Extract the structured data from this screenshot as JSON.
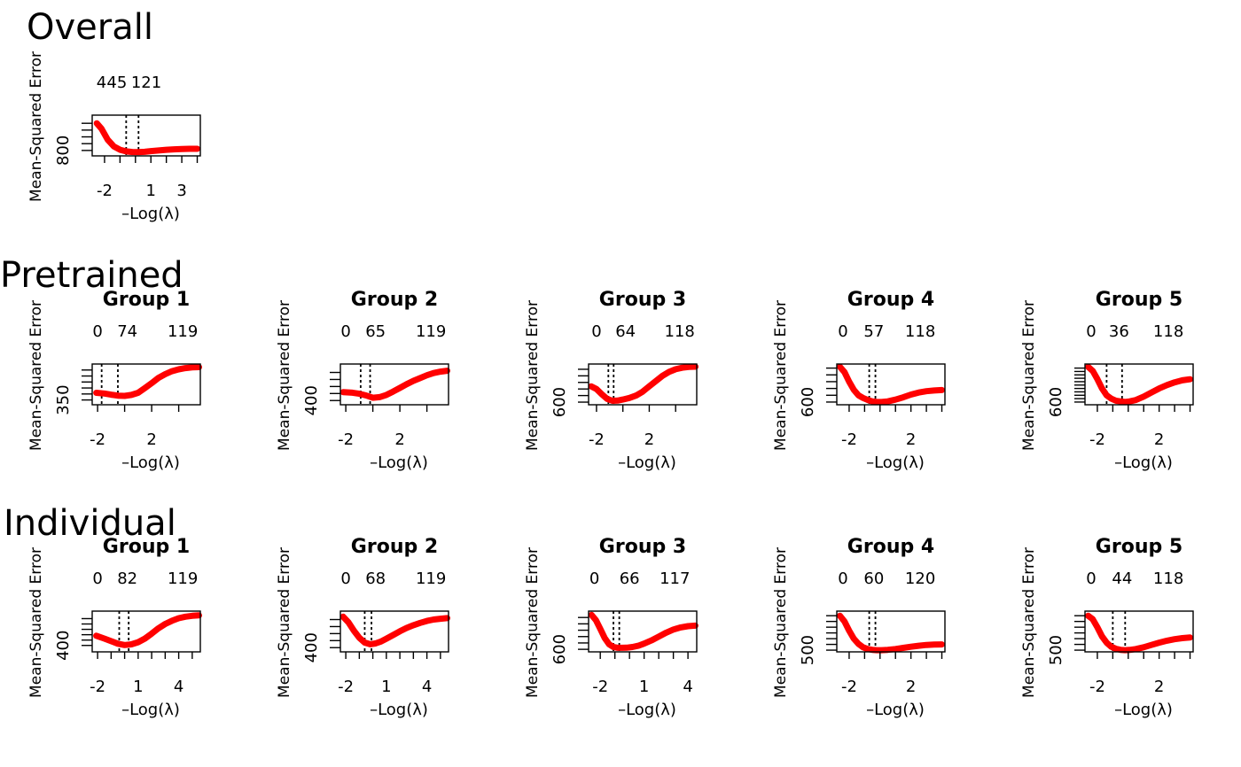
{
  "sections": [
    {
      "title": "Overall"
    },
    {
      "title": "Pretrained"
    },
    {
      "title": "Individual"
    }
  ],
  "colors": {
    "curve": "#ff0000",
    "band": "#a6a6a6",
    "axis": "#000000"
  },
  "chart_data": [
    {
      "section": "Overall",
      "type": "line",
      "title": "",
      "xlabel": "–Log(λ)",
      "ylabel": "Mean-Squared Error",
      "xlim": [
        -2.8,
        4.2
      ],
      "ylim": [
        760,
        1060
      ],
      "xticks": [
        -2,
        -1,
        0,
        1,
        2,
        3,
        4
      ],
      "xtick_labels": [
        "-2",
        "1",
        "3"
      ],
      "xtick_label_values": [
        -2,
        1,
        3
      ],
      "yticks": [
        800,
        850,
        900,
        950,
        1000
      ],
      "ytick_labels": [
        "800"
      ],
      "ytick_label_values": [
        800
      ],
      "top_ticks": [
        -2.2,
        -1.2,
        0.7
      ],
      "top_labels": [
        "4",
        "45",
        "121"
      ],
      "vlines": [
        -0.6,
        0.2
      ],
      "series": [
        {
          "x": [
            -2.5,
            -2.2,
            -1.8,
            -1.4,
            -1.0,
            -0.6,
            -0.2,
            0.2,
            0.6,
            1.0,
            1.5,
            2.0,
            2.5,
            3.0,
            3.5,
            4.0
          ],
          "y": [
            1000,
            960,
            880,
            830,
            805,
            793,
            789,
            788,
            790,
            795,
            800,
            805,
            808,
            810,
            812,
            812
          ]
        }
      ]
    },
    {
      "section": "Pretrained",
      "type": "line",
      "title": "Group 1",
      "xlabel": "–Log(λ)",
      "ylabel": "Mean-Squared Error",
      "xlim": [
        -2.4,
        5.6
      ],
      "ylim": [
        330,
        500
      ],
      "xticks": [
        -2,
        0,
        2,
        4
      ],
      "xtick_labels": [
        "-2",
        "2"
      ],
      "xtick_label_values": [
        -2,
        2
      ],
      "yticks": [
        350,
        375,
        400,
        425,
        450,
        475
      ],
      "ytick_labels": [
        "350"
      ],
      "ytick_label_values": [
        350
      ],
      "top_ticks": [
        -2.0,
        0.2,
        4.3
      ],
      "top_labels": [
        "0",
        "74",
        "119"
      ],
      "vlines": [
        -1.7,
        -0.5
      ],
      "series": [
        {
          "x": [
            -2.1,
            -1.5,
            -1.0,
            -0.5,
            0.0,
            0.5,
            1.0,
            1.5,
            2.0,
            2.5,
            3.0,
            3.5,
            4.0,
            4.5,
            5.0,
            5.5
          ],
          "y": [
            380,
            377,
            372,
            368,
            367,
            371,
            380,
            400,
            420,
            442,
            458,
            470,
            478,
            483,
            486,
            487
          ]
        }
      ]
    },
    {
      "section": "Pretrained",
      "type": "line",
      "title": "Group 2",
      "xlabel": "–Log(λ)",
      "ylabel": "Mean-Squared Error",
      "xlim": [
        -2.4,
        5.6
      ],
      "ylim": [
        385,
        530
      ],
      "xticks": [
        -2,
        0,
        2,
        4
      ],
      "xtick_labels": [
        "-2",
        "2"
      ],
      "xtick_label_values": [
        -2,
        2
      ],
      "yticks": [
        400,
        425,
        450,
        475,
        500
      ],
      "ytick_labels": [
        "400"
      ],
      "ytick_label_values": [
        400
      ],
      "top_ticks": [
        -2.0,
        0.2,
        4.3
      ],
      "top_labels": [
        "0",
        "65",
        "119"
      ],
      "vlines": [
        -0.9,
        -0.2
      ],
      "series": [
        {
          "x": [
            -2.2,
            -1.5,
            -1.0,
            -0.5,
            0.0,
            0.5,
            1.0,
            1.5,
            2.0,
            2.5,
            3.0,
            3.5,
            4.0,
            4.5,
            5.0,
            5.5
          ],
          "y": [
            430,
            428,
            424,
            418,
            410,
            412,
            420,
            432,
            445,
            458,
            470,
            480,
            490,
            498,
            503,
            506
          ]
        }
      ]
    },
    {
      "section": "Pretrained",
      "type": "line",
      "title": "Group 3",
      "xlabel": "–Log(λ)",
      "ylabel": "Mean-Squared Error",
      "xlim": [
        -2.6,
        5.6
      ],
      "ylim": [
        580,
        890
      ],
      "xticks": [
        -2,
        0,
        2,
        4
      ],
      "xtick_labels": [
        "-2",
        "2"
      ],
      "xtick_label_values": [
        -2,
        2
      ],
      "yticks": [
        600,
        650,
        700,
        750,
        800,
        850
      ],
      "ytick_labels": [
        "600"
      ],
      "ytick_label_values": [
        600
      ],
      "top_ticks": [
        -2.0,
        0.2,
        4.3
      ],
      "top_labels": [
        "0",
        "64",
        "118"
      ],
      "vlines": [
        -1.1,
        -0.7
      ],
      "series": [
        {
          "x": [
            -2.4,
            -2.0,
            -1.6,
            -1.2,
            -0.8,
            -0.4,
            0.0,
            0.5,
            1.0,
            1.5,
            2.0,
            2.5,
            3.0,
            3.5,
            4.0,
            4.5,
            5.0,
            5.5
          ],
          "y": [
            720,
            700,
            660,
            625,
            610,
            612,
            620,
            632,
            650,
            680,
            720,
            760,
            800,
            830,
            850,
            862,
            868,
            870
          ]
        }
      ]
    },
    {
      "section": "Pretrained",
      "type": "line",
      "title": "Group 4",
      "xlabel": "–Log(λ)",
      "ylabel": "Mean-Squared Error",
      "xlim": [
        -2.8,
        4.2
      ],
      "ylim": [
        580,
        880
      ],
      "xticks": [
        -2,
        -1,
        0,
        1,
        2,
        3,
        4
      ],
      "xtick_labels": [
        "-2",
        "2"
      ],
      "xtick_label_values": [
        -2,
        2
      ],
      "yticks": [
        600,
        650,
        700,
        750,
        800,
        850
      ],
      "ytick_labels": [
        "600"
      ],
      "ytick_label_values": [
        600
      ],
      "top_ticks": [
        -2.4,
        -0.4,
        2.6
      ],
      "top_labels": [
        "0",
        "57",
        "118"
      ],
      "vlines": [
        -0.7,
        -0.3
      ],
      "series": [
        {
          "x": [
            -2.6,
            -2.3,
            -2.0,
            -1.7,
            -1.4,
            -1.1,
            -0.8,
            -0.5,
            -0.2,
            0.1,
            0.5,
            1.0,
            1.5,
            2.0,
            2.5,
            3.0,
            3.5,
            4.0
          ],
          "y": [
            860,
            820,
            750,
            690,
            650,
            630,
            615,
            605,
            600,
            600,
            605,
            618,
            635,
            655,
            670,
            680,
            685,
            688
          ]
        }
      ]
    },
    {
      "section": "Pretrained",
      "type": "line",
      "title": "Group 5",
      "xlabel": "–Log(λ)",
      "ylabel": "Mean-Squared Error",
      "xlim": [
        -2.8,
        4.2
      ],
      "ylim": [
        580,
        880
      ],
      "xticks": [
        -2,
        -1,
        0,
        1,
        2,
        3,
        4
      ],
      "xtick_labels": [
        "-2",
        "2"
      ],
      "xtick_label_values": [
        -2,
        2
      ],
      "yticks": [
        600,
        625,
        650,
        675,
        700,
        725,
        750,
        775,
        800,
        825,
        850
      ],
      "ytick_labels": [
        "600"
      ],
      "ytick_label_values": [
        600
      ],
      "top_ticks": [
        -2.4,
        -0.6,
        2.6
      ],
      "top_labels": [
        "0",
        "36",
        "118"
      ],
      "vlines": [
        -1.4,
        -0.4
      ],
      "series": [
        {
          "x": [
            -2.6,
            -2.3,
            -2.0,
            -1.7,
            -1.4,
            -1.1,
            -0.8,
            -0.5,
            -0.2,
            0.1,
            0.5,
            1.0,
            1.5,
            2.0,
            2.5,
            3.0,
            3.5,
            4.0
          ],
          "y": [
            860,
            830,
            770,
            700,
            650,
            625,
            610,
            605,
            600,
            605,
            615,
            640,
            670,
            700,
            725,
            745,
            760,
            768
          ]
        }
      ]
    },
    {
      "section": "Individual",
      "type": "line",
      "title": "Group 1",
      "xlabel": "–Log(λ)",
      "ylabel": "Mean-Squared Error",
      "xlim": [
        -2.4,
        5.6
      ],
      "ylim": [
        370,
        560
      ],
      "xticks": [
        -2,
        -1,
        0,
        1,
        2,
        3,
        4,
        5
      ],
      "xtick_labels": [
        "-2",
        "1",
        "4"
      ],
      "xtick_label_values": [
        -2,
        1,
        4
      ],
      "yticks": [
        400,
        425,
        450,
        475,
        500,
        525
      ],
      "ytick_labels": [
        "400"
      ],
      "ytick_label_values": [
        400
      ],
      "top_ticks": [
        -2.0,
        0.2,
        4.3
      ],
      "top_labels": [
        "0",
        "82",
        "119"
      ],
      "vlines": [
        -0.4,
        0.3
      ],
      "series": [
        {
          "x": [
            -2.1,
            -1.5,
            -1.0,
            -0.5,
            0.0,
            0.5,
            1.0,
            1.5,
            2.0,
            2.5,
            3.0,
            3.5,
            4.0,
            4.5,
            5.0,
            5.5
          ],
          "y": [
            445,
            432,
            420,
            408,
            402,
            405,
            415,
            432,
            455,
            480,
            500,
            515,
            527,
            534,
            538,
            540
          ]
        }
      ]
    },
    {
      "section": "Individual",
      "type": "line",
      "title": "Group 2",
      "xlabel": "–Log(λ)",
      "ylabel": "Mean-Squared Error",
      "xlim": [
        -2.4,
        5.6
      ],
      "ylim": [
        385,
        530
      ],
      "xticks": [
        -2,
        -1,
        0,
        1,
        2,
        3,
        4,
        5
      ],
      "xtick_labels": [
        "-2",
        "1",
        "4"
      ],
      "xtick_label_values": [
        -2,
        1,
        4
      ],
      "yticks": [
        400,
        425,
        450,
        475,
        500
      ],
      "ytick_labels": [
        "400"
      ],
      "ytick_label_values": [
        400
      ],
      "top_ticks": [
        -2.0,
        0.2,
        4.3
      ],
      "top_labels": [
        "0",
        "68",
        "119"
      ],
      "vlines": [
        -0.6,
        -0.1
      ],
      "series": [
        {
          "x": [
            -2.2,
            -1.8,
            -1.4,
            -1.0,
            -0.6,
            -0.2,
            0.2,
            0.6,
            1.0,
            1.5,
            2.0,
            2.5,
            3.0,
            3.5,
            4.0,
            4.5,
            5.0,
            5.5
          ],
          "y": [
            510,
            490,
            460,
            435,
            418,
            412,
            415,
            422,
            432,
            445,
            458,
            470,
            480,
            488,
            495,
            500,
            503,
            505
          ]
        }
      ]
    },
    {
      "section": "Individual",
      "type": "line",
      "title": "Group 3",
      "xlabel": "–Log(λ)",
      "ylabel": "Mean-Squared Error",
      "xlim": [
        -2.8,
        4.6
      ],
      "ylim": [
        580,
        900
      ],
      "xticks": [
        -2,
        -1,
        0,
        1,
        2,
        3,
        4
      ],
      "xtick_labels": [
        "-2",
        "1",
        "4"
      ],
      "xtick_label_values": [
        -2,
        1,
        4
      ],
      "yticks": [
        600,
        650,
        700,
        750,
        800,
        850
      ],
      "ytick_labels": [
        "600"
      ],
      "ytick_label_values": [
        600
      ],
      "top_ticks": [
        -2.4,
        0.0,
        3.1
      ],
      "top_labels": [
        "0",
        "66",
        "117"
      ],
      "vlines": [
        -1.1,
        -0.7
      ],
      "series": [
        {
          "x": [
            -2.6,
            -2.3,
            -2.0,
            -1.7,
            -1.4,
            -1.1,
            -0.8,
            -0.5,
            -0.2,
            0.2,
            0.6,
            1.0,
            1.5,
            2.0,
            2.5,
            3.0,
            3.5,
            4.0,
            4.5
          ],
          "y": [
            870,
            830,
            760,
            690,
            640,
            618,
            612,
            612,
            613,
            618,
            628,
            645,
            670,
            700,
            730,
            755,
            772,
            782,
            786
          ]
        }
      ]
    },
    {
      "section": "Individual",
      "type": "line",
      "title": "Group 4",
      "xlabel": "–Log(λ)",
      "ylabel": "Mean-Squared Error",
      "xlim": [
        -2.8,
        4.2
      ],
      "ylim": [
        485,
        840
      ],
      "xticks": [
        -2,
        -1,
        0,
        1,
        2,
        3,
        4
      ],
      "xtick_labels": [
        "-2",
        "2"
      ],
      "xtick_label_values": [
        -2,
        2
      ],
      "yticks": [
        500,
        550,
        600,
        650,
        700,
        750,
        800
      ],
      "ytick_labels": [
        "500"
      ],
      "ytick_label_values": [
        500
      ],
      "top_ticks": [
        -2.4,
        -0.4,
        2.6
      ],
      "top_labels": [
        "0",
        "60",
        "120"
      ],
      "vlines": [
        -0.7,
        -0.3
      ],
      "series": [
        {
          "x": [
            -2.6,
            -2.3,
            -2.0,
            -1.7,
            -1.4,
            -1.1,
            -0.8,
            -0.5,
            -0.2,
            0.1,
            0.5,
            1.0,
            1.5,
            2.0,
            2.5,
            3.0,
            3.5,
            4.0
          ],
          "y": [
            800,
            750,
            670,
            600,
            555,
            525,
            510,
            503,
            500,
            500,
            503,
            510,
            520,
            530,
            538,
            545,
            548,
            550
          ]
        }
      ]
    },
    {
      "section": "Individual",
      "type": "line",
      "title": "Group 5",
      "xlabel": "–Log(λ)",
      "ylabel": "Mean-Squared Error",
      "xlim": [
        -2.8,
        4.2
      ],
      "ylim": [
        485,
        840
      ],
      "xticks": [
        -2,
        -1,
        0,
        1,
        2,
        3,
        4
      ],
      "xtick_labels": [
        "-2",
        "2"
      ],
      "xtick_label_values": [
        -2,
        2
      ],
      "yticks": [
        500,
        550,
        600,
        650,
        700,
        750,
        800
      ],
      "ytick_labels": [
        "500"
      ],
      "ytick_label_values": [
        500
      ],
      "top_ticks": [
        -2.4,
        -0.4,
        2.6
      ],
      "top_labels": [
        "0",
        "44",
        "118"
      ],
      "vlines": [
        -1.0,
        -0.2
      ],
      "series": [
        {
          "x": [
            -2.6,
            -2.3,
            -2.0,
            -1.7,
            -1.4,
            -1.1,
            -0.8,
            -0.5,
            -0.2,
            0.1,
            0.5,
            1.0,
            1.5,
            2.0,
            2.5,
            3.0,
            3.5,
            4.0
          ],
          "y": [
            800,
            770,
            700,
            620,
            565,
            530,
            512,
            503,
            500,
            502,
            510,
            525,
            545,
            565,
            582,
            595,
            605,
            610
          ]
        }
      ]
    }
  ]
}
